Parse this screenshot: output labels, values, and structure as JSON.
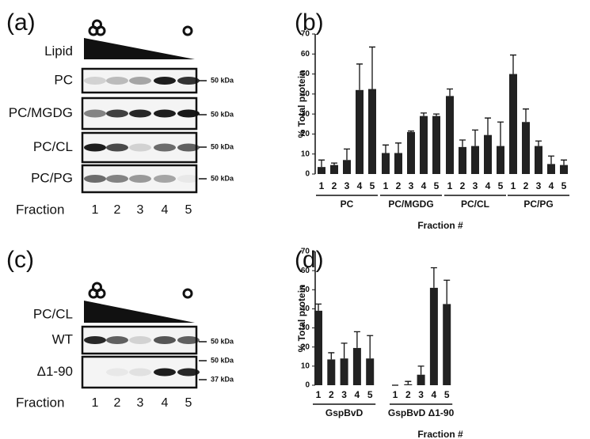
{
  "chart_data": [
    {
      "type": "bar",
      "panel": "(b)",
      "y_label": "% Total protein",
      "x_label": "Fraction #",
      "color": "#222222",
      "ylim": [
        0,
        70
      ],
      "yticks": [
        0,
        10,
        20,
        30,
        40,
        50,
        60,
        70
      ],
      "groups": [
        {
          "name": "PC",
          "categories": [
            "1",
            "2",
            "3",
            "4",
            "5"
          ],
          "values": [
            3.5,
            4.5,
            7,
            42,
            42.5
          ],
          "errors": [
            3.5,
            1,
            5.5,
            13,
            21
          ]
        },
        {
          "name": "PC/MGDG",
          "categories": [
            "1",
            "2",
            "3",
            "4",
            "5"
          ],
          "values": [
            10.5,
            10.5,
            21,
            29,
            29
          ],
          "errors": [
            4,
            5,
            0.5,
            1.5,
            1
          ]
        },
        {
          "name": "PC/CL",
          "categories": [
            "1",
            "2",
            "3",
            "4",
            "5"
          ],
          "values": [
            39,
            13.5,
            14,
            19.5,
            14
          ],
          "errors": [
            3.5,
            3.5,
            8,
            8.5,
            12
          ]
        },
        {
          "name": "PC/PG",
          "categories": [
            "1",
            "2",
            "3",
            "4",
            "5"
          ],
          "values": [
            50,
            26,
            14,
            5,
            4.5
          ],
          "errors": [
            9.5,
            6.5,
            2.5,
            4,
            2.5
          ]
        }
      ]
    },
    {
      "type": "bar",
      "panel": "(d)",
      "y_label": "% Total protein",
      "x_label": "Fraction #",
      "color": "#222222",
      "ylim": [
        0,
        70
      ],
      "yticks": [
        0,
        10,
        20,
        30,
        40,
        50,
        60,
        70
      ],
      "groups": [
        {
          "name": "GspBvD",
          "categories": [
            "1",
            "2",
            "3",
            "4",
            "5"
          ],
          "values": [
            39,
            13.5,
            14,
            19.5,
            14
          ],
          "errors": [
            3.5,
            3.5,
            8,
            8.5,
            12
          ]
        },
        {
          "name": "GspBvD Δ1-90",
          "categories": [
            "1",
            "2",
            "3",
            "4",
            "5"
          ],
          "values": [
            0,
            0.5,
            5.5,
            51,
            42.5
          ],
          "errors": [
            0,
            1.5,
            4.5,
            10.5,
            12.5
          ]
        }
      ]
    }
  ],
  "blots": [
    {
      "panel": "(a)",
      "header": "Lipid",
      "x_label": "Fraction",
      "fractions": [
        "1",
        "2",
        "3",
        "4",
        "5"
      ],
      "rows": [
        {
          "label": "PC",
          "markers": [
            "50 kDa"
          ]
        },
        {
          "label": "PC/MGDG",
          "markers": [
            "50 kDa"
          ]
        },
        {
          "label": "PC/CL",
          "markers": [
            "50 kDa"
          ]
        },
        {
          "label": "PC/PG",
          "markers": [
            "50 kDa"
          ]
        }
      ]
    },
    {
      "panel": "(c)",
      "header": "PC/CL",
      "x_label": "Fraction",
      "fractions": [
        "1",
        "2",
        "3",
        "4",
        "5"
      ],
      "rows": [
        {
          "label": "WT",
          "markers": [
            "50 kDa"
          ]
        },
        {
          "label": "Δ1-90",
          "markers": [
            "50 kDa",
            "37 kDa"
          ]
        }
      ]
    }
  ]
}
